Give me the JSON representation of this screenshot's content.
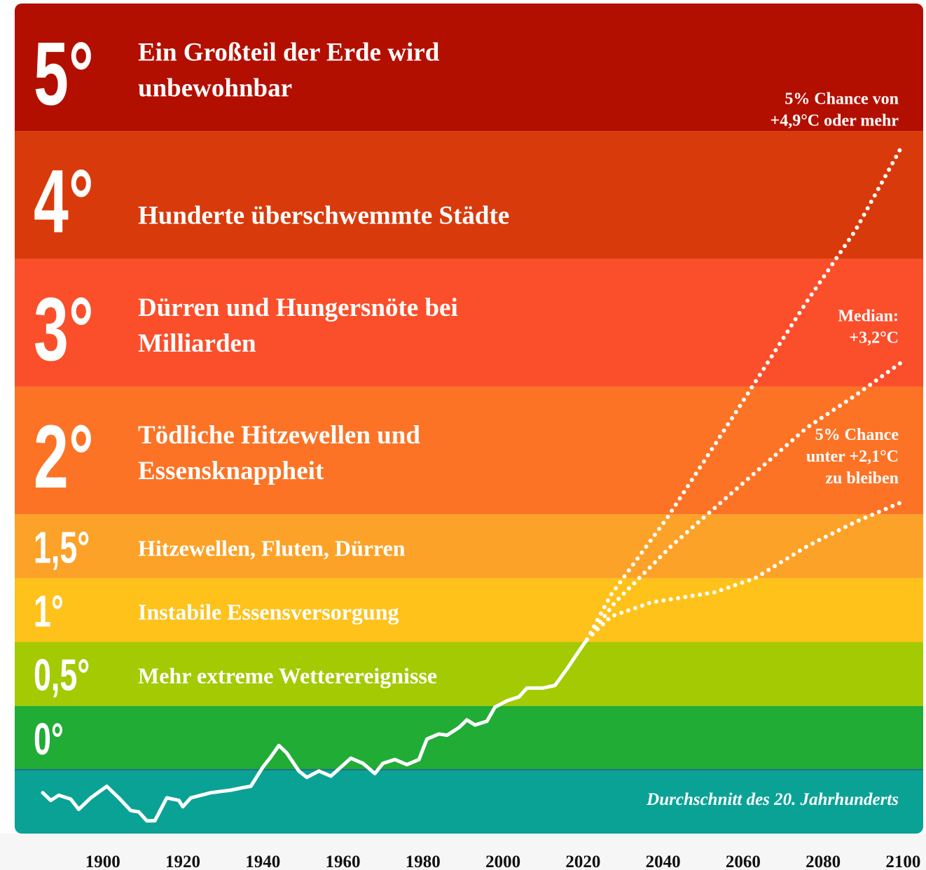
{
  "chart_data": {
    "type": "line",
    "xlim": [
      1878,
      2105
    ],
    "xticks": [
      1900,
      1920,
      1940,
      1960,
      1980,
      2000,
      2020,
      2040,
      2060,
      2080,
      2100
    ],
    "ylim": [
      -0.5,
      6
    ],
    "yticks": [
      {
        "value": 0,
        "label": "0°"
      },
      {
        "value": 0.5,
        "label": "0,5°"
      },
      {
        "value": 1,
        "label": "1°"
      },
      {
        "value": 1.5,
        "label": "1,5°"
      },
      {
        "value": 2,
        "label": "2°"
      },
      {
        "value": 3,
        "label": "3°"
      },
      {
        "value": 4,
        "label": "4°"
      },
      {
        "value": 5,
        "label": "5°"
      }
    ],
    "band_colors": [
      "#21ac36",
      "#a3ca02",
      "#fec21b",
      "#fca228",
      "#fc7326",
      "#fb4e2a",
      "#d93a0b",
      "#b30f00"
    ],
    "below_color": "#0ba296",
    "below_label": "Durchschnitt des 20. Jahrhunderts",
    "band_texts": [
      [],
      [
        "Mehr extreme Wetterereignisse"
      ],
      [
        "Instabile Essensversorgung"
      ],
      [
        "Hitzewellen, Fluten, Dürren"
      ],
      [
        "Tödliche Hitzewellen und",
        "Essensknappheit"
      ],
      [
        "Dürren und Hungersnöte bei",
        "Milliarden"
      ],
      [
        "Hunderte überschwemmte Städte"
      ],
      [
        "Ein Großteil der Erde wird",
        "unbewohnbar"
      ]
    ],
    "series": [
      {
        "color": "#ffffff",
        "style": "solid",
        "x": [
          1885,
          1887,
          1889,
          1892,
          1894,
          1897,
          1901,
          1904,
          1907,
          1909,
          1911,
          1913,
          1916,
          1919,
          1920,
          1922,
          1927,
          1932,
          1935,
          1937,
          1940,
          1942,
          1944,
          1946,
          1949,
          1951,
          1954,
          1957,
          1962,
          1965,
          1968,
          1970,
          1973,
          1976,
          1979,
          1981,
          1984,
          1986,
          1989,
          1991,
          1993,
          1996,
          1998,
          2001,
          2004,
          2006,
          2010,
          2013,
          2016,
          2019,
          2021
        ],
        "values": [
          -0.18,
          -0.24,
          -0.2,
          -0.23,
          -0.31,
          -0.22,
          -0.13,
          -0.22,
          -0.32,
          -0.33,
          -0.4,
          -0.4,
          -0.22,
          -0.24,
          -0.29,
          -0.22,
          -0.18,
          -0.16,
          -0.14,
          -0.13,
          0.02,
          0.1,
          0.19,
          0.13,
          -0.01,
          -0.06,
          -0.01,
          -0.05,
          0.09,
          0.05,
          -0.03,
          0.05,
          0.08,
          0.04,
          0.08,
          0.24,
          0.28,
          0.27,
          0.33,
          0.39,
          0.35,
          0.38,
          0.49,
          0.54,
          0.57,
          0.64,
          0.64,
          0.66,
          0.79,
          0.93,
          1.02
        ]
      },
      {
        "color": "#ffffff",
        "style": "dotted",
        "x": [
          2021,
          2027,
          2041,
          2058,
          2076,
          2088,
          2100
        ],
        "values": [
          1.02,
          1.37,
          1.97,
          2.79,
          3.67,
          4.22,
          4.9
        ],
        "label": [
          "5% Chance von",
          "+4,9°C oder mehr"
        ]
      },
      {
        "color": "#ffffff",
        "style": "dotted",
        "x": [
          2021,
          2028,
          2042,
          2058,
          2076,
          2088,
          2100
        ],
        "values": [
          1.02,
          1.31,
          1.75,
          2.19,
          2.68,
          2.93,
          3.2
        ],
        "label": [
          "Median:",
          "+3,2°C"
        ]
      },
      {
        "color": "#ffffff",
        "style": "dotted",
        "x": [
          2021,
          2027,
          2037,
          2053,
          2063,
          2076,
          2088,
          2100
        ],
        "values": [
          1.02,
          1.2,
          1.31,
          1.39,
          1.5,
          1.75,
          1.94,
          2.1
        ],
        "label": [
          "5% Chance",
          "unter +2,1°C",
          "zu bleiben"
        ]
      }
    ]
  }
}
